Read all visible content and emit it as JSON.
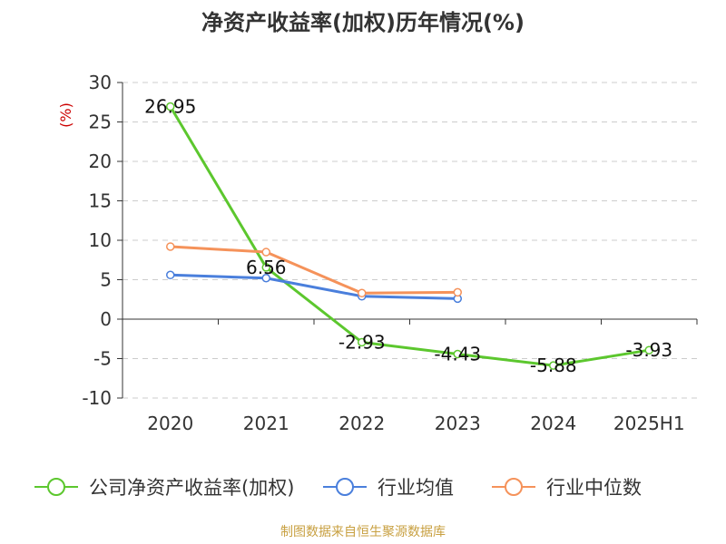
{
  "chart_data": {
    "type": "line",
    "title": "净资产收益率(加权)历年情况(%)",
    "unit": "(%)",
    "categories": [
      "2020",
      "2021",
      "2022",
      "2023",
      "2024",
      "2025H1"
    ],
    "ylim": [
      -10,
      30
    ],
    "yticks": [
      30,
      25,
      20,
      15,
      10,
      5,
      0,
      -5,
      -10
    ],
    "grid": true,
    "legend_position": "bottom",
    "series": [
      {
        "name": "公司净资产收益率(加权)",
        "color": "#5cc72e",
        "values": [
          26.95,
          6.56,
          -2.93,
          -4.43,
          -5.88,
          -3.93
        ],
        "labels": [
          "26.95",
          "6.56",
          "-2.93",
          "-4.43",
          "-5.88",
          "-3.93"
        ]
      },
      {
        "name": "行业均值",
        "color": "#4a7fdc",
        "values": [
          5.6,
          5.2,
          2.9,
          2.6,
          null,
          null
        ]
      },
      {
        "name": "行业中位数",
        "color": "#f5925a",
        "values": [
          9.2,
          8.5,
          3.3,
          3.4,
          null,
          null
        ]
      }
    ],
    "source": "制图数据来自恒生聚源数据库"
  }
}
